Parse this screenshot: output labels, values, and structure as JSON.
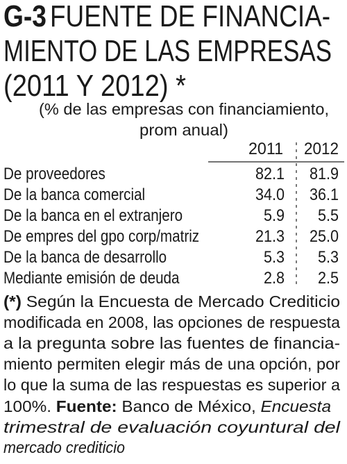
{
  "header": {
    "code": "G-3",
    "title_lines": [
      "FUENTE DE FINANCIA-",
      "MIENTO DE LAS EMPRESAS",
      "(2011 Y 2012) *"
    ],
    "subtitle_lines": [
      "(% de las empresas con financiamiento,",
      "prom anual)"
    ]
  },
  "table": {
    "columns": [
      "2011",
      "2012"
    ],
    "rows": [
      [
        "De proveedores",
        "82.1",
        "81.9"
      ],
      [
        "De la banca comercial",
        "34.0",
        "36.1"
      ],
      [
        "De la banca en el extranjero",
        "5.9",
        "5.5"
      ],
      [
        "De empres del gpo corp/matriz",
        "21.3",
        "25.0"
      ],
      [
        "De la banca de desarrollo",
        "5.3",
        "5.3"
      ],
      [
        "Mediante emisión de deuda",
        "2.8",
        "2.5"
      ]
    ]
  },
  "note": {
    "marker": "(*)",
    "text_lines": [
      "Según la Encuesta de Mercado Crediticio",
      "modificada en 2008, las opciones de respuesta",
      "a la pregunta sobre las fuentes de financia-",
      "miento permiten elegir más de una opción, por",
      "lo que la suma de las respuestas es superior a",
      "100%."
    ],
    "source_label": "Fuente:",
    "source": "Banco de México,",
    "publication_lines": [
      "Encuesta",
      "trimestral de evaluación coyuntural del",
      "mercado crediticio"
    ]
  }
}
